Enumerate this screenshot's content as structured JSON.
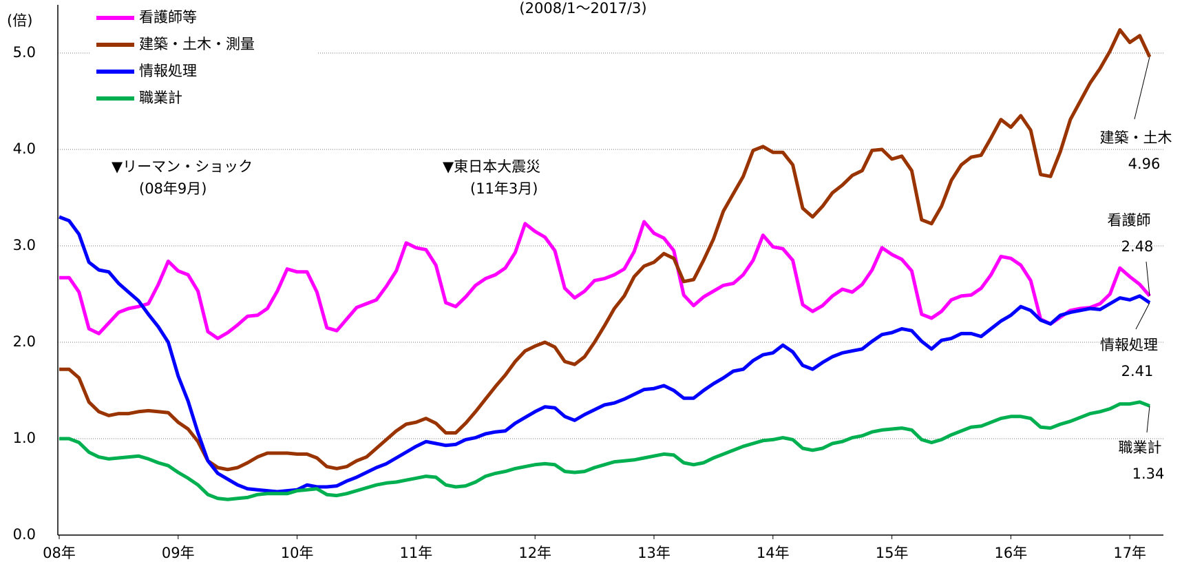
{
  "chart_data": {
    "type": "line",
    "subtitle": "(2008/1～2017/3)",
    "y_unit": "(倍)",
    "categories": [
      "08年",
      null,
      null,
      null,
      null,
      null,
      null,
      null,
      null,
      null,
      null,
      null,
      "09年",
      null,
      null,
      null,
      null,
      null,
      null,
      null,
      null,
      null,
      null,
      null,
      "10年",
      null,
      null,
      null,
      null,
      null,
      null,
      null,
      null,
      null,
      null,
      null,
      "11年",
      null,
      null,
      null,
      null,
      null,
      null,
      null,
      null,
      null,
      null,
      null,
      "12年",
      null,
      null,
      null,
      null,
      null,
      null,
      null,
      null,
      null,
      null,
      null,
      "13年",
      null,
      null,
      null,
      null,
      null,
      null,
      null,
      null,
      null,
      null,
      null,
      "14年",
      null,
      null,
      null,
      null,
      null,
      null,
      null,
      null,
      null,
      null,
      null,
      "15年",
      null,
      null,
      null,
      null,
      null,
      null,
      null,
      null,
      null,
      null,
      null,
      "16年",
      null,
      null,
      null,
      null,
      null,
      null,
      null,
      null,
      null,
      null,
      null,
      "17年",
      null,
      null
    ],
    "series": [
      {
        "name": "看護師等",
        "color": "#ff00ff",
        "values": [
          2.67,
          2.67,
          2.52,
          2.14,
          2.09,
          2.2,
          2.31,
          2.35,
          2.37,
          2.4,
          2.6,
          2.84,
          2.74,
          2.7,
          2.53,
          2.11,
          2.04,
          2.1,
          2.18,
          2.27,
          2.28,
          2.35,
          2.53,
          2.76,
          2.73,
          2.73,
          2.52,
          2.15,
          2.12,
          2.24,
          2.36,
          2.4,
          2.44,
          2.58,
          2.74,
          3.03,
          2.98,
          2.96,
          2.8,
          2.41,
          2.37,
          2.47,
          2.59,
          2.66,
          2.7,
          2.77,
          2.93,
          3.23,
          3.15,
          3.09,
          2.95,
          2.56,
          2.46,
          2.53,
          2.64,
          2.66,
          2.7,
          2.76,
          2.94,
          3.25,
          3.13,
          3.08,
          2.95,
          2.49,
          2.38,
          2.47,
          2.53,
          2.59,
          2.61,
          2.7,
          2.85,
          3.11,
          2.99,
          2.97,
          2.85,
          2.39,
          2.32,
          2.38,
          2.48,
          2.55,
          2.52,
          2.6,
          2.75,
          2.98,
          2.91,
          2.86,
          2.74,
          2.29,
          2.25,
          2.32,
          2.44,
          2.48,
          2.49,
          2.56,
          2.7,
          2.89,
          2.87,
          2.8,
          2.64,
          2.24,
          2.19,
          2.26,
          2.33,
          2.35,
          2.36,
          2.4,
          2.5,
          2.77,
          2.68,
          2.6,
          2.48
        ]
      },
      {
        "name": "建築・土木・測量",
        "color": "#993300",
        "values": [
          1.72,
          1.72,
          1.63,
          1.38,
          1.28,
          1.24,
          1.26,
          1.26,
          1.28,
          1.29,
          1.28,
          1.27,
          1.17,
          1.1,
          0.97,
          0.77,
          0.7,
          0.68,
          0.7,
          0.75,
          0.81,
          0.85,
          0.85,
          0.85,
          0.84,
          0.84,
          0.8,
          0.71,
          0.69,
          0.71,
          0.77,
          0.81,
          0.9,
          0.99,
          1.08,
          1.15,
          1.17,
          1.21,
          1.16,
          1.06,
          1.06,
          1.16,
          1.28,
          1.41,
          1.54,
          1.66,
          1.8,
          1.91,
          1.96,
          2.0,
          1.95,
          1.8,
          1.77,
          1.85,
          2.0,
          2.17,
          2.35,
          2.48,
          2.68,
          2.79,
          2.83,
          2.92,
          2.87,
          2.63,
          2.65,
          2.85,
          3.07,
          3.36,
          3.54,
          3.72,
          3.99,
          4.03,
          3.97,
          3.97,
          3.84,
          3.39,
          3.3,
          3.41,
          3.55,
          3.63,
          3.73,
          3.78,
          3.99,
          4.0,
          3.9,
          3.93,
          3.78,
          3.27,
          3.23,
          3.41,
          3.68,
          3.84,
          3.92,
          3.94,
          4.12,
          4.31,
          4.23,
          4.35,
          4.2,
          3.74,
          3.72,
          3.98,
          4.31,
          4.5,
          4.69,
          4.84,
          5.02,
          5.24,
          5.11,
          5.18,
          4.96
        ]
      },
      {
        "name": "情報処理",
        "color": "#0000ff",
        "values": [
          3.3,
          3.26,
          3.12,
          2.83,
          2.75,
          2.73,
          2.61,
          2.52,
          2.43,
          2.29,
          2.16,
          2.0,
          1.65,
          1.39,
          1.06,
          0.77,
          0.64,
          0.58,
          0.52,
          0.48,
          0.47,
          0.46,
          0.45,
          0.46,
          0.47,
          0.52,
          0.5,
          0.5,
          0.51,
          0.56,
          0.6,
          0.65,
          0.7,
          0.74,
          0.8,
          0.86,
          0.92,
          0.97,
          0.95,
          0.93,
          0.94,
          0.99,
          1.01,
          1.05,
          1.07,
          1.08,
          1.16,
          1.22,
          1.28,
          1.33,
          1.32,
          1.23,
          1.19,
          1.25,
          1.3,
          1.35,
          1.37,
          1.41,
          1.46,
          1.51,
          1.52,
          1.55,
          1.5,
          1.42,
          1.42,
          1.5,
          1.57,
          1.63,
          1.7,
          1.72,
          1.81,
          1.87,
          1.89,
          1.97,
          1.9,
          1.76,
          1.72,
          1.79,
          1.85,
          1.89,
          1.91,
          1.93,
          2.01,
          2.08,
          2.1,
          2.14,
          2.12,
          2.01,
          1.93,
          2.02,
          2.04,
          2.09,
          2.09,
          2.06,
          2.14,
          2.22,
          2.28,
          2.37,
          2.33,
          2.23,
          2.19,
          2.28,
          2.31,
          2.33,
          2.35,
          2.34,
          2.4,
          2.46,
          2.44,
          2.48,
          2.41
        ]
      },
      {
        "name": "職業計",
        "color": "#00b050",
        "values": [
          1.0,
          1.0,
          0.96,
          0.86,
          0.81,
          0.79,
          0.8,
          0.81,
          0.82,
          0.79,
          0.75,
          0.72,
          0.65,
          0.59,
          0.52,
          0.42,
          0.38,
          0.37,
          0.38,
          0.39,
          0.42,
          0.43,
          0.43,
          0.43,
          0.46,
          0.47,
          0.48,
          0.42,
          0.41,
          0.43,
          0.46,
          0.49,
          0.52,
          0.54,
          0.55,
          0.57,
          0.59,
          0.61,
          0.6,
          0.52,
          0.5,
          0.51,
          0.55,
          0.61,
          0.64,
          0.66,
          0.69,
          0.71,
          0.73,
          0.74,
          0.73,
          0.66,
          0.65,
          0.66,
          0.7,
          0.73,
          0.76,
          0.77,
          0.78,
          0.8,
          0.82,
          0.84,
          0.83,
          0.75,
          0.73,
          0.75,
          0.8,
          0.84,
          0.88,
          0.92,
          0.95,
          0.98,
          0.99,
          1.01,
          0.99,
          0.9,
          0.88,
          0.9,
          0.95,
          0.97,
          1.01,
          1.03,
          1.07,
          1.09,
          1.1,
          1.11,
          1.09,
          0.99,
          0.96,
          0.99,
          1.04,
          1.08,
          1.12,
          1.13,
          1.17,
          1.21,
          1.23,
          1.23,
          1.21,
          1.12,
          1.11,
          1.15,
          1.18,
          1.22,
          1.26,
          1.28,
          1.31,
          1.36,
          1.36,
          1.38,
          1.34
        ]
      }
    ],
    "end_labels": [
      {
        "label": "建築・土木",
        "value": 4.96
      },
      {
        "label": "看護師",
        "value": 2.48
      },
      {
        "label": "情報処理",
        "value": 2.41
      },
      {
        "label": "職業計",
        "value": 1.34
      }
    ],
    "annotations": [
      {
        "label": "▼リーマン・ショック",
        "date": "(08年9月)"
      },
      {
        "label": "▼東日本大震災",
        "date": "(11年3月)"
      }
    ],
    "ylim": [
      0,
      5.5
    ],
    "yticks": [
      {
        "value": 0,
        "label": "0.0"
      },
      {
        "value": 1,
        "label": "1.0"
      },
      {
        "value": 2,
        "label": "2.0"
      },
      {
        "value": 3,
        "label": "3.0"
      },
      {
        "value": 4,
        "label": "4.0"
      },
      {
        "value": 5,
        "label": "5.0"
      }
    ],
    "grid": true,
    "legend": "upper left"
  }
}
